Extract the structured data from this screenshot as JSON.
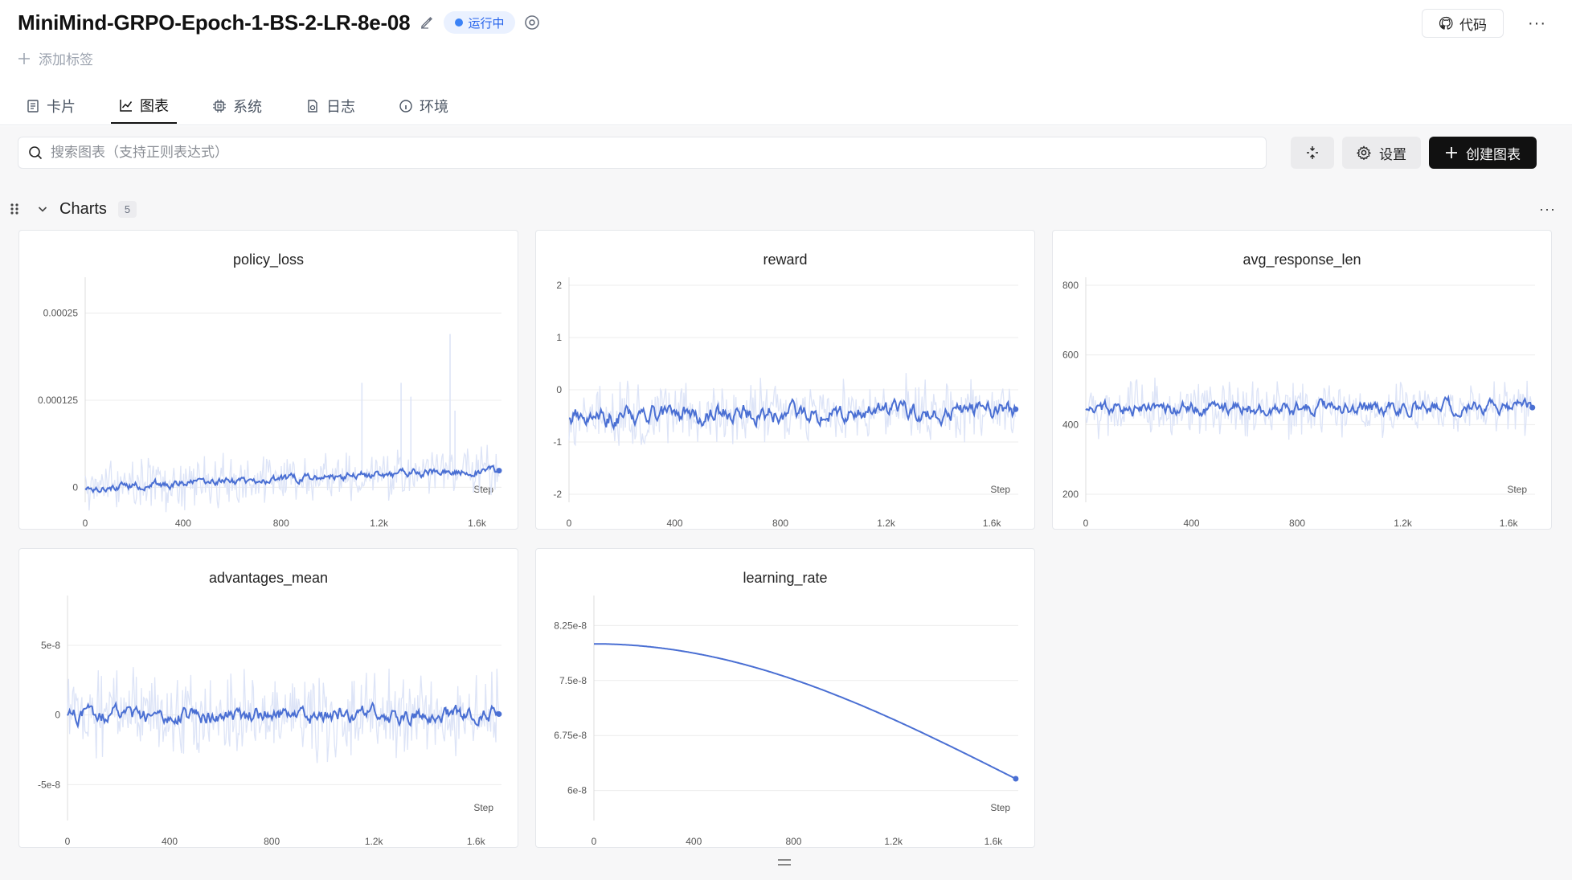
{
  "header": {
    "title": "MiniMind-GRPO-Epoch-1-BS-2-LR-8e-08",
    "status": "运行中",
    "add_tag": "添加标签",
    "code_label": "代码",
    "more": "···"
  },
  "tabs": [
    {
      "label": "卡片",
      "icon": "card-icon",
      "active": false
    },
    {
      "label": "图表",
      "icon": "chart-icon",
      "active": true
    },
    {
      "label": "系统",
      "icon": "cpu-icon",
      "active": false
    },
    {
      "label": "日志",
      "icon": "log-icon",
      "active": false
    },
    {
      "label": "环境",
      "icon": "info-icon",
      "active": false
    }
  ],
  "toolbar": {
    "search_placeholder": "搜索图表（支持正则表达式）",
    "settings_label": "设置",
    "create_label": "创建图表"
  },
  "group": {
    "title": "Charts",
    "count": "5",
    "more": "···"
  },
  "colors": {
    "series": "#4a6fd3",
    "band": "#dde4f7",
    "accent": "#2563eb",
    "dark_button": "#111111"
  },
  "chart_data": [
    {
      "type": "line",
      "title": "policy_loss",
      "xlabel": "Step",
      "xlim": [
        0,
        1700
      ],
      "ylim": [
        -1e-05,
        0.00029
      ],
      "xticks": [
        0,
        400,
        800,
        1200,
        1600
      ],
      "xtick_labels": [
        "0",
        "400",
        "800",
        "1.2k",
        "1.6k"
      ],
      "yticks": [
        0,
        0.000125,
        0.00025
      ],
      "ytick_labels": [
        "0",
        "0.000125",
        "0.00025"
      ],
      "series": [
        {
          "x_end": 1690,
          "trend_start": 0.0,
          "trend_end": 2.5e-05,
          "noise": 4e-06,
          "band_noise": 3e-05,
          "spikes": [
            [
              1130,
              0.00015
            ],
            [
              1290,
              0.00015
            ],
            [
              1330,
              0.00013
            ],
            [
              1490,
              0.00022
            ],
            [
              1510,
              0.00011
            ]
          ]
        }
      ],
      "grid": true
    },
    {
      "type": "line",
      "title": "reward",
      "xlabel": "Step",
      "xlim": [
        0,
        1700
      ],
      "ylim": [
        -2,
        2
      ],
      "xticks": [
        0,
        400,
        800,
        1200,
        1600
      ],
      "xtick_labels": [
        "0",
        "400",
        "800",
        "1.2k",
        "1.6k"
      ],
      "yticks": [
        -2,
        -1,
        0,
        1,
        2
      ],
      "ytick_labels": [
        "-2",
        "-1",
        "0",
        "1",
        "2"
      ],
      "series": [
        {
          "x_end": 1690,
          "trend_start": -0.5,
          "trend_end": -0.4,
          "noise": 0.12,
          "band_noise": 0.55,
          "spikes": []
        }
      ],
      "grid": true
    },
    {
      "type": "line",
      "title": "avg_response_len",
      "xlabel": "Step",
      "xlim": [
        0,
        1700
      ],
      "ylim": [
        200,
        800
      ],
      "xticks": [
        0,
        400,
        800,
        1200,
        1600
      ],
      "xtick_labels": [
        "0",
        "400",
        "800",
        "1.2k",
        "1.6k"
      ],
      "yticks": [
        200,
        400,
        600,
        800
      ],
      "ytick_labels": [
        "200",
        "400",
        "600",
        "800"
      ],
      "series": [
        {
          "x_end": 1690,
          "trend_start": 445,
          "trend_end": 450,
          "noise": 14,
          "band_noise": 70,
          "spikes": []
        }
      ],
      "grid": true
    },
    {
      "type": "line",
      "title": "advantages_mean",
      "xlabel": "Step",
      "xlim": [
        0,
        1700
      ],
      "ylim": [
        -7e-08,
        8e-08
      ],
      "xticks": [
        0,
        400,
        800,
        1200,
        1600
      ],
      "xtick_labels": [
        "0",
        "400",
        "800",
        "1.2k",
        "1.6k"
      ],
      "yticks": [
        -5e-08,
        0,
        5e-08
      ],
      "ytick_labels": [
        "-5e-8",
        "0",
        "5e-8"
      ],
      "series": [
        {
          "x_end": 1690,
          "trend_start": 0,
          "trend_end": 0,
          "noise": 4e-09,
          "band_noise": 2.6e-08,
          "spikes": []
        }
      ],
      "grid": true
    },
    {
      "type": "line",
      "title": "learning_rate",
      "xlabel": "Step",
      "xlim": [
        0,
        1700
      ],
      "ylim": [
        5.7e-08,
        8.55e-08
      ],
      "xticks": [
        0,
        400,
        800,
        1200,
        1600
      ],
      "xtick_labels": [
        "0",
        "400",
        "800",
        "1.2k",
        "1.6k"
      ],
      "yticks": [
        6e-08,
        6.75e-08,
        7.5e-08,
        8.25e-08
      ],
      "ytick_labels": [
        "6e-8",
        "6.75e-8",
        "7.5e-8",
        "8.25e-8"
      ],
      "series": [
        {
          "x_end": 1690,
          "curve": "cosine",
          "y_start": 8e-08,
          "y_end": 6.16e-08,
          "noise": 0,
          "band_noise": 0,
          "spikes": []
        }
      ],
      "grid": true
    }
  ]
}
